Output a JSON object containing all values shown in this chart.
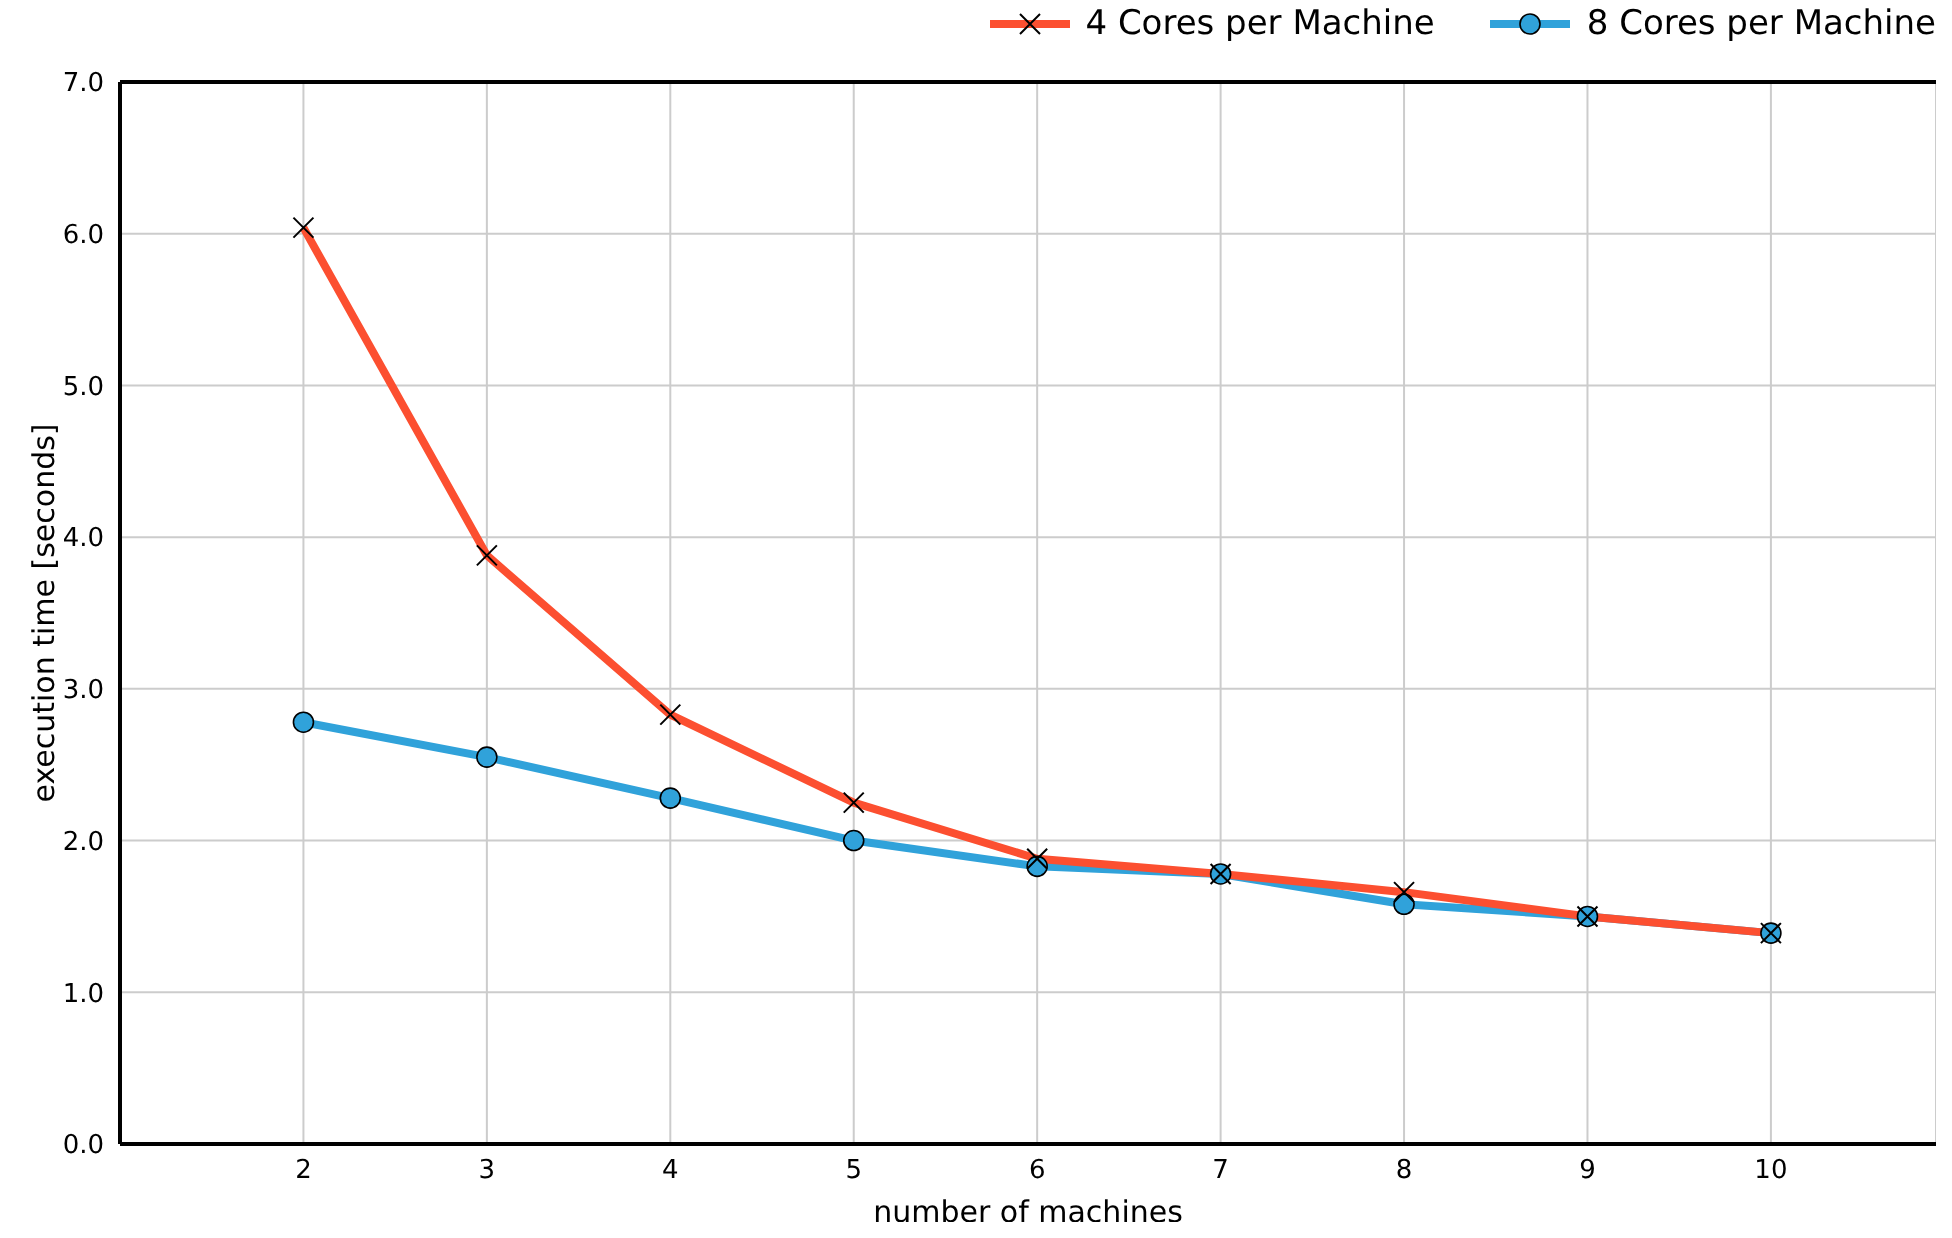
{
  "chart_data": {
    "type": "line",
    "xlabel": "number of machines",
    "ylabel": "execution time [seconds]",
    "x": [
      2,
      3,
      4,
      5,
      6,
      7,
      8,
      9,
      10
    ],
    "series": [
      {
        "name": "4 Cores per Machine",
        "color": "#fc4f30",
        "marker": "cross",
        "values": [
          6.04,
          3.88,
          2.83,
          2.25,
          1.88,
          1.78,
          1.66,
          1.5,
          1.39
        ]
      },
      {
        "name": "8 Cores per Machine",
        "color": "#30a2da",
        "marker": "circle",
        "values": [
          2.78,
          2.55,
          2.28,
          2.0,
          1.83,
          1.78,
          1.58,
          1.5,
          1.39
        ]
      }
    ],
    "xlim": [
      1,
      10.9
    ],
    "xticks": [
      2,
      3,
      4,
      5,
      6,
      7,
      8,
      9,
      10
    ],
    "ylim": [
      0,
      7
    ],
    "yticks": [
      {
        "value": 0,
        "label": "0.0"
      },
      {
        "value": 1,
        "label": "1.0"
      },
      {
        "value": 2,
        "label": "2.0"
      },
      {
        "value": 3,
        "label": "3.0"
      },
      {
        "value": 4,
        "label": "4.0"
      },
      {
        "value": 5,
        "label": "5.0"
      },
      {
        "value": 6,
        "label": "6.0"
      },
      {
        "value": 7,
        "label": "7.0"
      }
    ],
    "grid": true,
    "legend": "top right",
    "line_style": "solid"
  }
}
